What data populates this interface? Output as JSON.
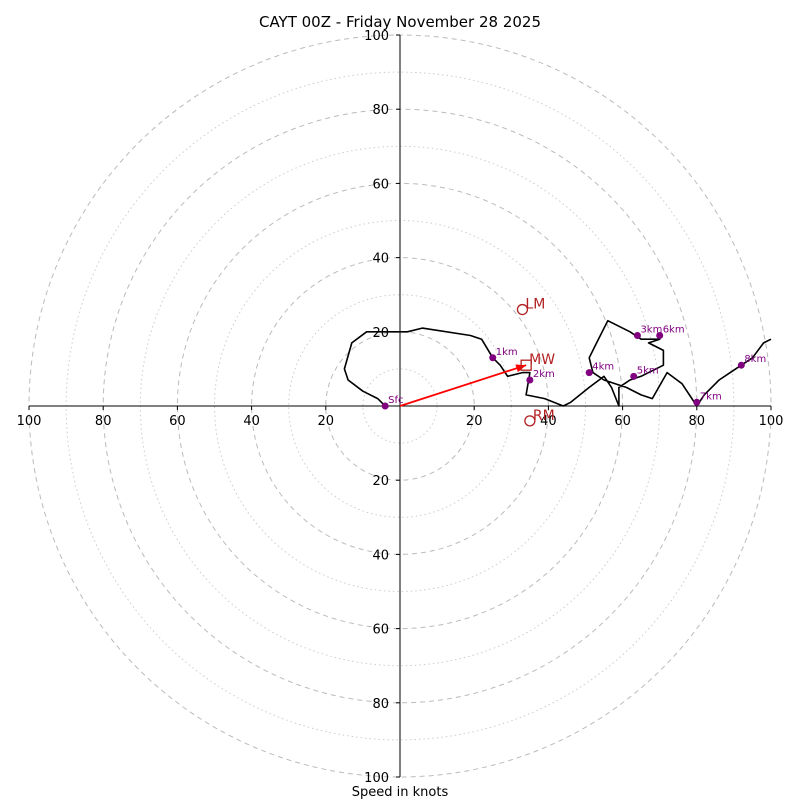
{
  "title": "CAYT 00Z - Friday November 28 2025",
  "chart_data": {
    "type": "hodograph",
    "title": "CAYT 00Z - Friday November 28 2025",
    "xlabel": "Speed in knots",
    "units": "knots",
    "xlim": [
      -100,
      100
    ],
    "ylim": [
      -100,
      100
    ],
    "axis_tick_labels": [
      "100",
      "80",
      "60",
      "40",
      "20",
      "20",
      "40",
      "60",
      "80",
      "100"
    ],
    "v_tick_labels": [
      "100",
      "80",
      "60",
      "40",
      "20",
      "20",
      "40",
      "60",
      "80",
      "100"
    ],
    "rings_major": [
      20,
      40,
      60,
      80,
      100
    ],
    "rings_minor": [
      10,
      30,
      50,
      70,
      90
    ],
    "grid": true,
    "colors": {
      "trace": "#000000",
      "height_marker": "#800080",
      "storm_motion": "#b22222",
      "shear_vector": "#ff0000",
      "grid": "#bbbbbb"
    },
    "trace": [
      [
        -4,
        0
      ],
      [
        -6,
        2
      ],
      [
        -10,
        4
      ],
      [
        -14,
        7
      ],
      [
        -15,
        10
      ],
      [
        -13,
        17
      ],
      [
        -9,
        20
      ],
      [
        2,
        20
      ],
      [
        6,
        21
      ],
      [
        19,
        19
      ],
      [
        22,
        18
      ],
      [
        25,
        13
      ],
      [
        27,
        11
      ],
      [
        29,
        8
      ],
      [
        33,
        9
      ],
      [
        35,
        9
      ],
      [
        34,
        3
      ],
      [
        39,
        2
      ],
      [
        44,
        0
      ],
      [
        46,
        1
      ],
      [
        51,
        5
      ],
      [
        55,
        8
      ],
      [
        57,
        5
      ],
      [
        59,
        0
      ],
      [
        59,
        5
      ],
      [
        62,
        7
      ],
      [
        65,
        8
      ],
      [
        71,
        11
      ],
      [
        71,
        15
      ],
      [
        67,
        17
      ],
      [
        70,
        18
      ],
      [
        65,
        18
      ],
      [
        62,
        20
      ],
      [
        56,
        23
      ],
      [
        53,
        17
      ],
      [
        51,
        13
      ],
      [
        52,
        9
      ],
      [
        55,
        7
      ],
      [
        58,
        6
      ],
      [
        61,
        5
      ],
      [
        65,
        3
      ],
      [
        68,
        2
      ],
      [
        72,
        9
      ],
      [
        76,
        6
      ],
      [
        80,
        0
      ],
      [
        82,
        3
      ],
      [
        86,
        7
      ],
      [
        89,
        9
      ],
      [
        92,
        11
      ],
      [
        95,
        13
      ],
      [
        98,
        17
      ],
      [
        100,
        18
      ]
    ],
    "height_markers": [
      {
        "label": "Sfc",
        "u": -4,
        "v": 0
      },
      {
        "label": "1km",
        "u": 25,
        "v": 13
      },
      {
        "label": "2km",
        "u": 35,
        "v": 7
      },
      {
        "label": "3km",
        "u": 64,
        "v": 19
      },
      {
        "label": "4km",
        "u": 51,
        "v": 9
      },
      {
        "label": "5km",
        "u": 63,
        "v": 8
      },
      {
        "label": "6km",
        "u": 70,
        "v": 19
      },
      {
        "label": "7km",
        "u": 80,
        "v": 1
      },
      {
        "label": "8km",
        "u": 92,
        "v": 11
      }
    ],
    "storm_motions": [
      {
        "label": "LM",
        "u": 33,
        "v": 26,
        "marker": "circle"
      },
      {
        "label": "MW",
        "u": 34,
        "v": 11,
        "marker": "square"
      },
      {
        "label": "RM",
        "u": 35,
        "v": -4,
        "marker": "circle"
      }
    ],
    "shear_vector": {
      "from": [
        0,
        0
      ],
      "to": [
        34,
        11
      ]
    }
  }
}
